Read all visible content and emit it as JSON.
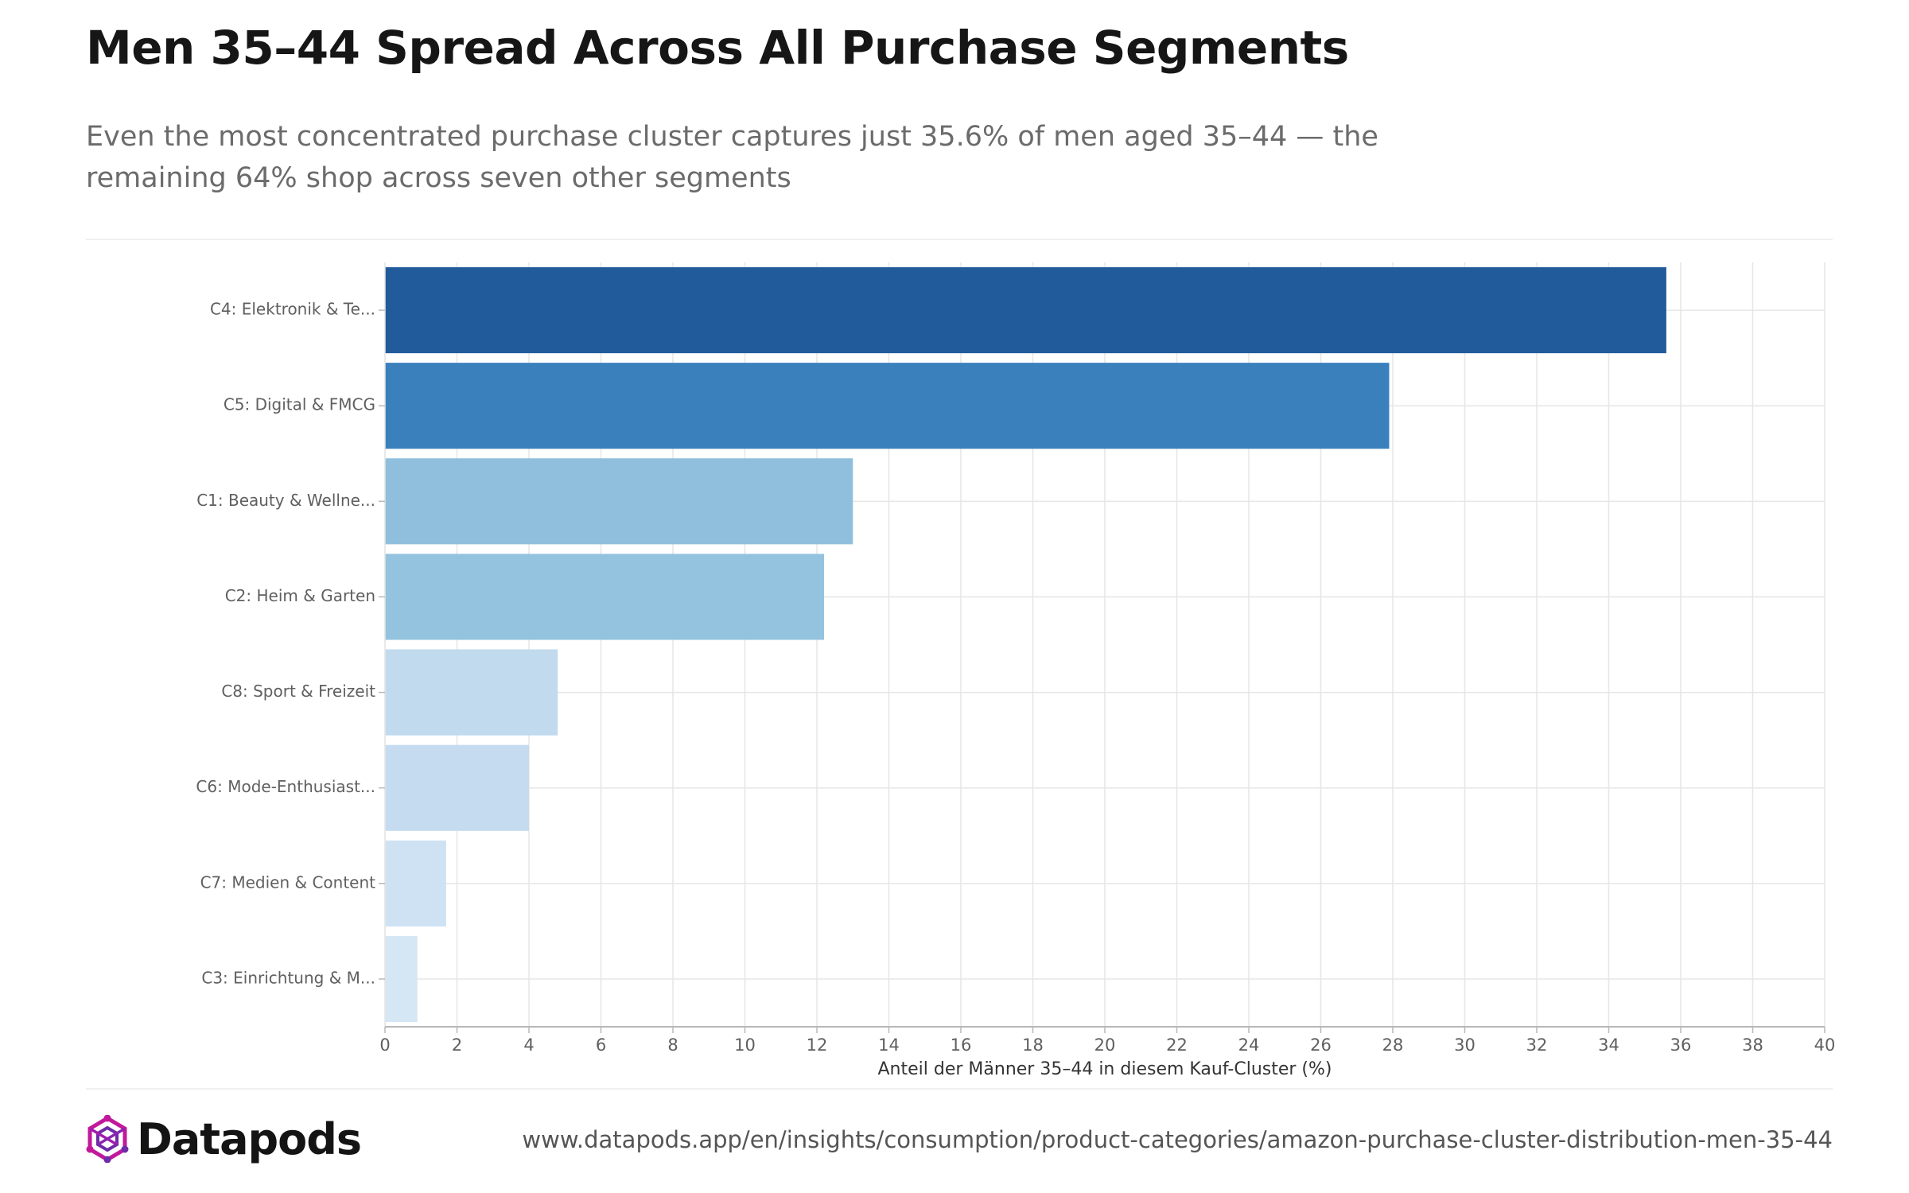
{
  "header": {
    "title": "Men 35–44 Spread Across All Purchase Segments",
    "subtitle": "Even the most concentrated purchase cluster captures just 35.6% of men aged 35–44 — the remaining 64% shop across seven other segments"
  },
  "footer": {
    "brand": "Datapods",
    "logo_icon": "datapods-logo-icon",
    "source_url": "www.datapods.app/en/insights/consumption/product-categories/amazon-purchase-cluster-distribution-men-35-44"
  },
  "colors": {
    "bar_darkest": "#225b9b",
    "bar_dark": "#3a80bd",
    "bar_mid": "#8fbfdd",
    "bar_light": "#c3dbee",
    "bar_lightest": "#d2e4f3",
    "grid": "#e6e6e6",
    "axis": "#b8b8b8",
    "brand_magenta": "#c2189c",
    "brand_purple": "#6e2ca8"
  },
  "chart_data": {
    "type": "bar",
    "orientation": "horizontal",
    "categories": [
      "C4: Elektronik & Te...",
      "C5: Digital & FMCG",
      "C1: Beauty & Wellne...",
      "C2: Heim & Garten",
      "C8: Sport & Freizeit",
      "C6: Mode-Enthusiast...",
      "C7: Medien & Content",
      "C3: Einrichtung & M..."
    ],
    "values": [
      35.6,
      27.9,
      13.0,
      12.2,
      4.8,
      4.0,
      1.7,
      0.9
    ],
    "bar_colors": [
      "#225b9b",
      "#3a80bd",
      "#8fbfdd",
      "#94c3df",
      "#c1daed",
      "#c5dbf0",
      "#cfe2f3",
      "#d5e6f5"
    ],
    "xlabel": "Anteil der Männer 35–44 in diesem Kauf-Cluster (%)",
    "ylabel": "",
    "xlim": [
      0,
      40
    ],
    "x_ticks": [
      0,
      2,
      4,
      6,
      8,
      10,
      12,
      14,
      16,
      18,
      20,
      22,
      24,
      26,
      28,
      30,
      32,
      34,
      36,
      38,
      40
    ],
    "grid": true,
    "legend": "none"
  }
}
